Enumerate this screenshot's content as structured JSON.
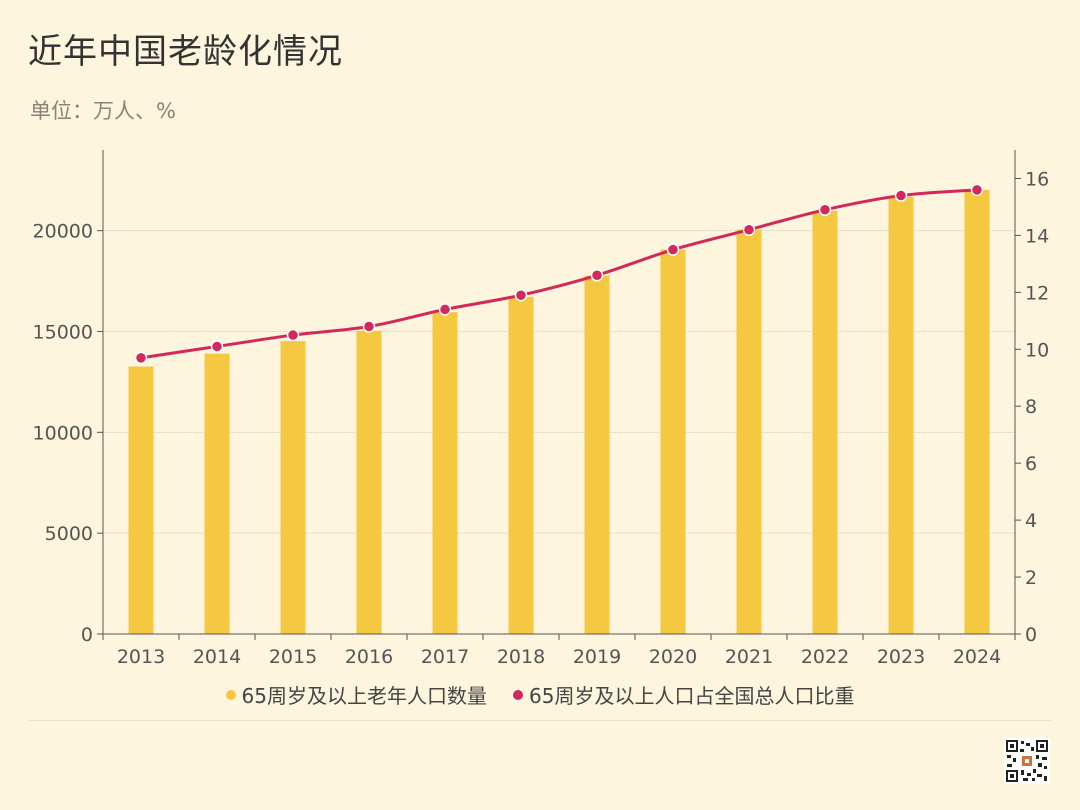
{
  "title": "近年中国老龄化情况",
  "subtitle": "单位：万人、%",
  "colors": {
    "background": "#fdf5dd",
    "bar": "#f5c842",
    "line": "#d2285a",
    "grid": "#e6dfcc",
    "axis": "#555555"
  },
  "legend": [
    {
      "label": "65周岁及以上老年人口数量",
      "color": "#f5c842"
    },
    {
      "label": "65周岁及以上人口占全国总人口比重",
      "color": "#d2285a"
    }
  ],
  "chart_data": {
    "type": "bar",
    "categories": [
      "2013",
      "2014",
      "2015",
      "2016",
      "2017",
      "2018",
      "2019",
      "2020",
      "2021",
      "2022",
      "2023",
      "2024"
    ],
    "series": [
      {
        "name": "65周岁及以上老年人口数量",
        "type": "bar",
        "axis": "left",
        "values": [
          13262,
          13902,
          14524,
          15037,
          15961,
          16724,
          17767,
          19064,
          20056,
          20978,
          21676,
          22023
        ]
      },
      {
        "name": "65周岁及以上人口占全国总人口比重",
        "type": "line",
        "axis": "right",
        "values": [
          9.7,
          10.1,
          10.5,
          10.8,
          11.4,
          11.9,
          12.6,
          13.5,
          14.2,
          14.9,
          15.4,
          15.6
        ]
      }
    ],
    "left_axis": {
      "ylim": [
        0,
        24000
      ],
      "ticks": [
        0,
        5000,
        10000,
        15000,
        20000
      ]
    },
    "right_axis": {
      "ylim": [
        0,
        17
      ],
      "ticks": [
        0,
        2,
        4,
        6,
        8,
        10,
        12,
        14,
        16
      ]
    },
    "grid": true,
    "legend_position": "bottom"
  }
}
